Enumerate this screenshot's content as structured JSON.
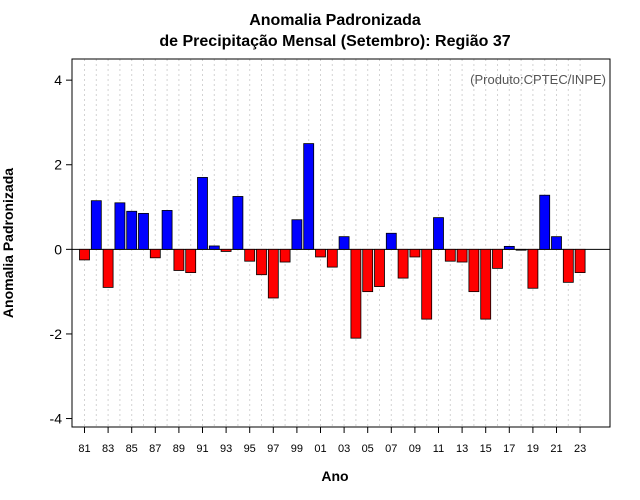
{
  "chart_data": {
    "type": "bar",
    "title_line1": "Anomalia Padronizada",
    "title_line2": "de Precipitação Mensal (Setembro): Região 37",
    "xlabel": "Ano",
    "ylabel": "Anomalia Padronizada",
    "annotation": "(Produto:CPTEC/INPE)",
    "ylim": [
      -4.2,
      4.5
    ],
    "yticks": [
      -4,
      -2,
      0,
      2,
      4
    ],
    "ytick_labels": [
      "-4",
      "-2",
      "0",
      "2",
      "4"
    ],
    "x_labels_shown": [
      "81",
      "83",
      "85",
      "87",
      "89",
      "91",
      "93",
      "95",
      "97",
      "99",
      "01",
      "03",
      "05",
      "07",
      "09",
      "11",
      "13",
      "15",
      "17",
      "19",
      "21",
      "23"
    ],
    "positive_color": "#0000ff",
    "negative_color": "#ff0000",
    "categories": [
      "1981",
      "1982",
      "1983",
      "1984",
      "1985",
      "1986",
      "1987",
      "1988",
      "1989",
      "1990",
      "1991",
      "1992",
      "1993",
      "1994",
      "1995",
      "1996",
      "1997",
      "1998",
      "1999",
      "2000",
      "2001",
      "2002",
      "2003",
      "2004",
      "2005",
      "2006",
      "2007",
      "2008",
      "2009",
      "2010",
      "2011",
      "2012",
      "2013",
      "2014",
      "2015",
      "2016",
      "2017",
      "2018",
      "2019",
      "2020",
      "2021",
      "2022",
      "2023"
    ],
    "values": [
      -0.25,
      1.15,
      -0.9,
      1.1,
      0.9,
      0.85,
      -0.2,
      0.92,
      -0.5,
      -0.55,
      1.7,
      0.08,
      -0.05,
      1.25,
      -0.28,
      -0.6,
      -1.15,
      -0.3,
      0.7,
      2.5,
      -0.18,
      -0.42,
      0.3,
      -2.1,
      -1.0,
      -0.88,
      0.38,
      -0.68,
      -0.18,
      -1.65,
      0.75,
      -0.28,
      -0.3,
      -1.0,
      -1.65,
      -0.45,
      0.07,
      -0.02,
      -0.92,
      1.28,
      0.3,
      -0.78,
      -0.55
    ]
  }
}
